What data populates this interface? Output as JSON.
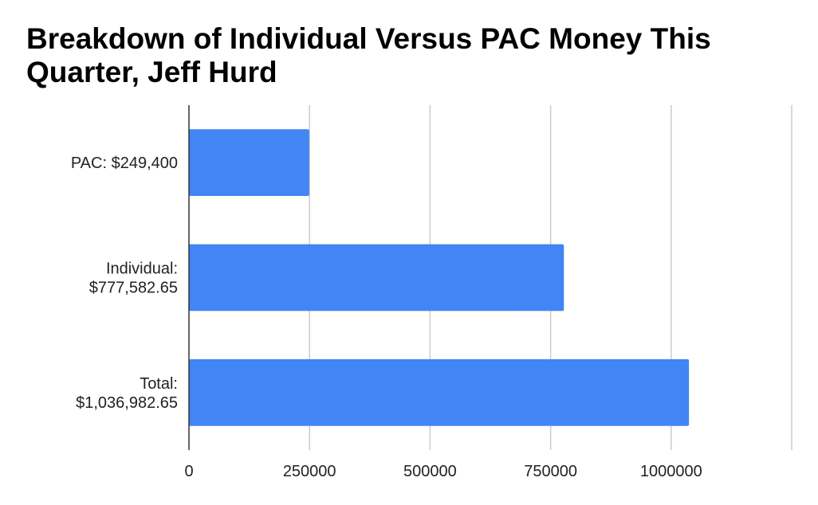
{
  "chart_data": {
    "type": "bar",
    "orientation": "horizontal",
    "title": "Breakdown of Individual Versus PAC Money This Quarter, Jeff Hurd",
    "categories": [
      [
        "PAC: $249,400"
      ],
      [
        "Individual:",
        "$777,582.65"
      ],
      [
        "Total:",
        "$1,036,982.65"
      ]
    ],
    "values": [
      249400,
      777582.65,
      1036982.65
    ],
    "xlim": [
      0,
      1250000
    ],
    "xticks": [
      0,
      250000,
      500000,
      750000,
      1000000
    ],
    "xtick_labels": [
      "0",
      "250000",
      "500000",
      "750000",
      "1000000"
    ],
    "xlabel": "",
    "ylabel": "",
    "grid": true,
    "legend": "none",
    "colors": {
      "bar": "#4285f4",
      "grid": "#cccccc",
      "axis": "#333333"
    }
  }
}
